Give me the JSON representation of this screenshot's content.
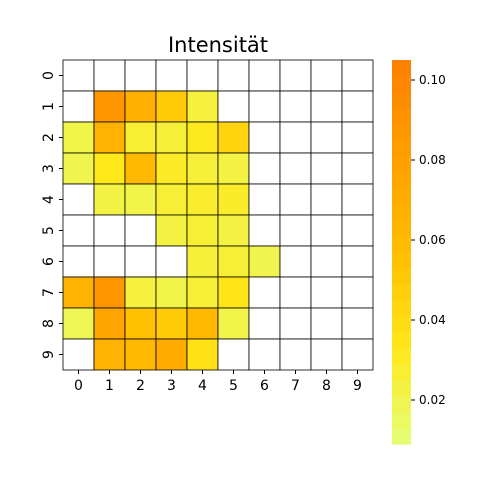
{
  "chart_data": {
    "type": "heatmap",
    "title": "Intensität",
    "x_ticks": [
      "0",
      "1",
      "2",
      "3",
      "4",
      "5",
      "6",
      "7",
      "8",
      "9"
    ],
    "y_ticks": [
      "0",
      "1",
      "2",
      "3",
      "4",
      "5",
      "6",
      "7",
      "8",
      "9"
    ],
    "values": [
      [
        null,
        null,
        null,
        null,
        null,
        null,
        null,
        null,
        null,
        null
      ],
      [
        null,
        0.088,
        0.068,
        0.049,
        0.024,
        null,
        null,
        null,
        null,
        null
      ],
      [
        0.021,
        0.066,
        0.027,
        0.025,
        0.032,
        0.044,
        null,
        null,
        null,
        null
      ],
      [
        0.02,
        0.033,
        0.06,
        0.03,
        0.025,
        0.023,
        null,
        null,
        null,
        null
      ],
      [
        null,
        0.022,
        0.021,
        0.026,
        0.028,
        0.029,
        null,
        null,
        null,
        null
      ],
      [
        null,
        null,
        null,
        0.023,
        0.026,
        0.023,
        null,
        null,
        null,
        null
      ],
      [
        null,
        null,
        null,
        null,
        0.025,
        0.026,
        0.02,
        null,
        null,
        null
      ],
      [
        0.066,
        0.088,
        0.024,
        0.021,
        0.026,
        0.035,
        null,
        null,
        null,
        null
      ],
      [
        0.018,
        0.078,
        0.055,
        0.05,
        0.06,
        0.021,
        null,
        null,
        null,
        null
      ],
      [
        null,
        0.066,
        0.06,
        0.072,
        0.037,
        null,
        null,
        null,
        null,
        null
      ]
    ],
    "colorbar": {
      "min": 0.009,
      "max": 0.105,
      "ticks": [
        0.02,
        0.04,
        0.06,
        0.08,
        0.1
      ],
      "tick_labels": [
        "0.02",
        "0.04",
        "0.06",
        "0.08",
        "0.10"
      ],
      "colormap": "Wistia",
      "color_stops": [
        "#e4ff7a",
        "#ffe81a",
        "#ffbd00",
        "#ffa000",
        "#fc7f00"
      ]
    },
    "missing_color": "#ffffff",
    "gridlines": true
  }
}
